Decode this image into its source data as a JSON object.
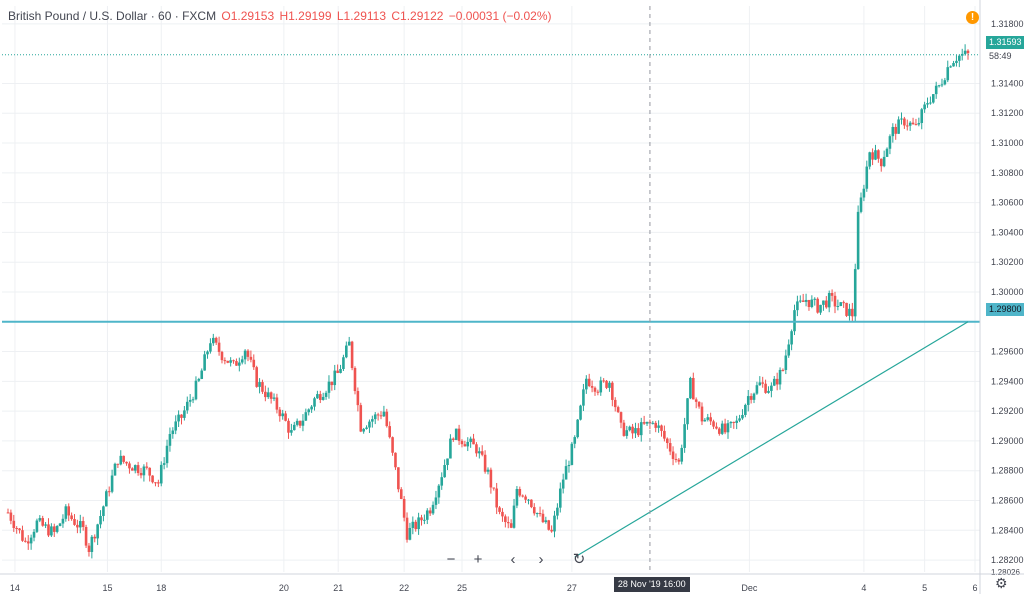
{
  "header": {
    "symbol": "British Pound / U.S. Dollar · 60 · FXCM",
    "open": "O1.29153",
    "high": "H1.29199",
    "low": "L1.29113",
    "close": "C1.29122",
    "change": "−0.00031 (−0.02%)"
  },
  "price_axis": {
    "ticks": [
      "1.31800",
      "1.31400",
      "1.31200",
      "1.31000",
      "1.30800",
      "1.30600",
      "1.30400",
      "1.30200",
      "1.30000",
      "1.29600",
      "1.29400",
      "1.29200",
      "1.29000",
      "1.28800",
      "1.28600",
      "1.28400",
      "1.28200"
    ],
    "last_price": "1.31593",
    "countdown": "58:49",
    "hline_price": "1.29800",
    "bottom_partial": "1.28026"
  },
  "time_axis": {
    "labels": [
      "14",
      "15",
      "18",
      "20",
      "21",
      "22",
      "25",
      "27",
      "28 Nov '19  16:00",
      "Dec",
      "4",
      "5",
      "6"
    ],
    "crosshair_label": "28 Nov '19   16:00"
  },
  "chart_data": {
    "type": "candlestick",
    "title": "British Pound / U.S. Dollar · 60 · FXCM",
    "ylim": [
      1.2812,
      1.3192
    ],
    "y_ticks": [
      1.318,
      1.314,
      1.312,
      1.31,
      1.308,
      1.306,
      1.304,
      1.302,
      1.3,
      1.298,
      1.296,
      1.294,
      1.292,
      1.29,
      1.288,
      1.286,
      1.284,
      1.282
    ],
    "x_ticks": [
      "14",
      "15",
      "18",
      "20",
      "21",
      "22",
      "25",
      "27",
      "Dec",
      "4",
      "5",
      "6"
    ],
    "path": [
      [
        0,
        1.2852
      ],
      [
        3,
        1.2832
      ],
      [
        5,
        1.2845
      ],
      [
        8,
        1.2838
      ],
      [
        10,
        1.2852
      ],
      [
        13,
        1.284
      ],
      [
        14,
        1.2828
      ],
      [
        16,
        1.285
      ],
      [
        19,
        1.2888
      ],
      [
        21,
        1.2884
      ],
      [
        24,
        1.288
      ],
      [
        26,
        1.2872
      ],
      [
        28,
        1.2905
      ],
      [
        30,
        1.2916
      ],
      [
        33,
        1.294
      ],
      [
        35,
        1.2968
      ],
      [
        37,
        1.2958
      ],
      [
        39,
        1.295
      ],
      [
        41,
        1.2962
      ],
      [
        43,
        1.294
      ],
      [
        45,
        1.293
      ],
      [
        47,
        1.292
      ],
      [
        49,
        1.2905
      ],
      [
        51,
        1.2915
      ],
      [
        53,
        1.2928
      ],
      [
        55,
        1.2936
      ],
      [
        57,
        1.2945
      ],
      [
        59,
        1.2965
      ],
      [
        61,
        1.291
      ],
      [
        63,
        1.2915
      ],
      [
        65,
        1.292
      ],
      [
        67,
        1.288
      ],
      [
        69,
        1.2838
      ],
      [
        71,
        1.2845
      ],
      [
        73,
        1.2855
      ],
      [
        75,
        1.2878
      ],
      [
        77,
        1.2905
      ],
      [
        79,
        1.29
      ],
      [
        81,
        1.2895
      ],
      [
        83,
        1.2878
      ],
      [
        85,
        1.285
      ],
      [
        87,
        1.284
      ],
      [
        88,
        1.2868
      ],
      [
        90,
        1.2862
      ],
      [
        92,
        1.2848
      ],
      [
        94,
        1.2838
      ],
      [
        96,
        1.2875
      ],
      [
        98,
        1.29
      ],
      [
        100,
        1.2942
      ],
      [
        102,
        1.2936
      ],
      [
        104,
        1.294
      ],
      [
        106,
        1.2908
      ],
      [
        108,
        1.2905
      ],
      [
        110,
        1.291
      ],
      [
        112,
        1.2912
      ],
      [
        114,
        1.2898
      ],
      [
        116,
        1.2885
      ],
      [
        118,
        1.2938
      ],
      [
        120,
        1.2915
      ],
      [
        122,
        1.2912
      ],
      [
        124,
        1.2906
      ],
      [
        126,
        1.2912
      ],
      [
        128,
        1.293
      ],
      [
        130,
        1.2938
      ],
      [
        132,
        1.2935
      ],
      [
        134,
        1.2948
      ],
      [
        136,
        1.2988
      ],
      [
        138,
        1.2995
      ],
      [
        140,
        1.299
      ],
      [
        142,
        1.2995
      ],
      [
        144,
        1.299
      ],
      [
        146,
        1.2985
      ],
      [
        147,
        1.305
      ],
      [
        149,
        1.3095
      ],
      [
        151,
        1.3088
      ],
      [
        153,
        1.3108
      ],
      [
        155,
        1.3115
      ],
      [
        157,
        1.311
      ],
      [
        159,
        1.3128
      ],
      [
        161,
        1.3138
      ],
      [
        163,
        1.3155
      ],
      [
        164,
        1.3158
      ],
      [
        165,
        1.3159
      ],
      [
        166,
        1.3159
      ]
    ],
    "trendline": [
      [
        98,
        1.2822
      ],
      [
        166,
        1.298
      ]
    ],
    "horizontal_line": 1.298,
    "crosshair_x": 111,
    "last_price": 1.31593
  },
  "toolbar": {
    "zoom_out": "−",
    "zoom_in": "+",
    "scroll_left": "‹",
    "scroll_right": "›",
    "reset": "↻"
  },
  "alert": "!",
  "settings_icon": "⚙",
  "colors": {
    "up": "#26a69a",
    "down": "#ef5350",
    "grid": "#e6e9ee",
    "hline": "#4fb5c9",
    "axis_text": "#434651"
  }
}
